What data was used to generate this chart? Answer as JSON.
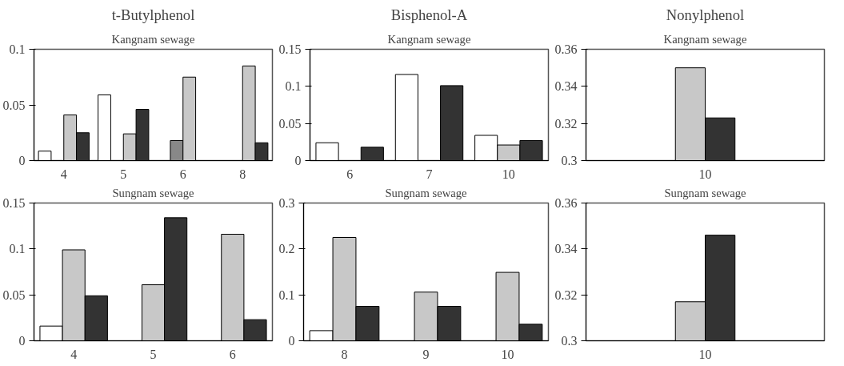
{
  "chart_data": [
    {
      "type": "bar",
      "title": "t-Butylphenol",
      "subtitle": "Kangnam sewage",
      "categories": [
        "4",
        "5",
        "6",
        "8"
      ],
      "ylim": [
        0,
        0.1
      ],
      "yticks": [
        0,
        0.05,
        0.1
      ],
      "series": [
        {
          "color": "#ffffff",
          "values": [
            0.0085,
            0.059,
            null,
            null
          ]
        },
        {
          "color": "#888888",
          "values": [
            null,
            null,
            0.018,
            null
          ]
        },
        {
          "color": "#c8c8c8",
          "values": [
            0.041,
            0.024,
            0.075,
            0.085
          ]
        },
        {
          "color": "#333333",
          "values": [
            0.025,
            0.046,
            null,
            0.016
          ]
        }
      ]
    },
    {
      "type": "bar",
      "title": "Bisphenol-A",
      "subtitle": "Kangnam sewage",
      "categories": [
        "6",
        "7",
        "10"
      ],
      "ylim": [
        0,
        0.15
      ],
      "yticks": [
        0,
        0.05,
        0.1,
        0.15
      ],
      "series": [
        {
          "color": "#ffffff",
          "values": [
            0.024,
            0.116,
            0.034
          ]
        },
        {
          "color": "#c8c8c8",
          "values": [
            null,
            null,
            0.021
          ]
        },
        {
          "color": "#333333",
          "values": [
            0.018,
            0.101,
            0.027
          ]
        }
      ]
    },
    {
      "type": "bar",
      "title": "Nonylphenol",
      "subtitle": "Kangnam sewage",
      "categories": [
        "10"
      ],
      "ylim": [
        0.3,
        0.36
      ],
      "yticks": [
        0.3,
        0.32,
        0.34,
        0.36
      ],
      "series": [
        {
          "color": "#c8c8c8",
          "values": [
            0.35
          ]
        },
        {
          "color": "#333333",
          "values": [
            0.323
          ]
        }
      ]
    },
    {
      "type": "bar",
      "subtitle": "Sungnam sewage",
      "categories": [
        "4",
        "5",
        "6"
      ],
      "ylim": [
        0,
        0.15
      ],
      "yticks": [
        0,
        0.05,
        0.1,
        0.15
      ],
      "series": [
        {
          "color": "#ffffff",
          "values": [
            0.016,
            null,
            null
          ]
        },
        {
          "color": "#c8c8c8",
          "values": [
            0.099,
            0.061,
            0.116
          ]
        },
        {
          "color": "#333333",
          "values": [
            0.049,
            0.134,
            0.023
          ]
        }
      ]
    },
    {
      "type": "bar",
      "subtitle": "Sungnam sewage",
      "categories": [
        "8",
        "9",
        "10"
      ],
      "ylim": [
        0,
        0.3
      ],
      "yticks": [
        0,
        0.1,
        0.2,
        0.3
      ],
      "series": [
        {
          "color": "#ffffff",
          "values": [
            0.022,
            null,
            null
          ]
        },
        {
          "color": "#c8c8c8",
          "values": [
            0.225,
            0.106,
            0.149
          ]
        },
        {
          "color": "#333333",
          "values": [
            0.075,
            0.075,
            0.036
          ]
        }
      ]
    },
    {
      "type": "bar",
      "subtitle": "Sungnam sewage",
      "categories": [
        "10"
      ],
      "ylim": [
        0.3,
        0.36
      ],
      "yticks": [
        0.3,
        0.32,
        0.34,
        0.36
      ],
      "series": [
        {
          "color": "#c8c8c8",
          "values": [
            0.317
          ]
        },
        {
          "color": "#333333",
          "values": [
            0.346
          ]
        }
      ]
    }
  ]
}
